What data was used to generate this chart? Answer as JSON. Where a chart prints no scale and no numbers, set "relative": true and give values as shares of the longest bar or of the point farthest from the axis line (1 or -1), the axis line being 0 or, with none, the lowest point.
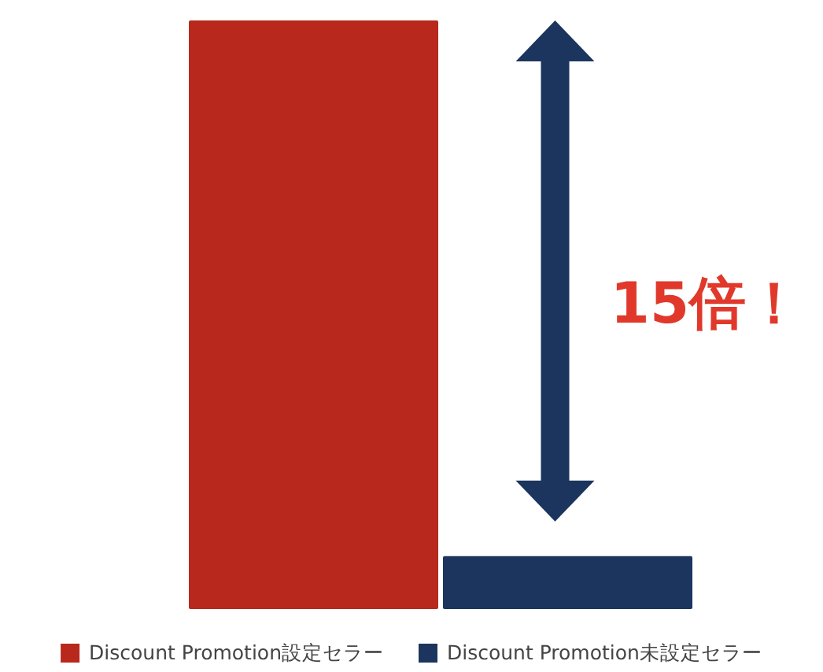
{
  "chart_data": {
    "type": "bar",
    "relative": true,
    "categories": [
      null
    ],
    "series": [
      {
        "name": "Discount Promotion設定セラー",
        "color": "#b8281d",
        "values": [
          1
        ]
      },
      {
        "name": "Discount Promotion未設定セラー",
        "color": "#1c355e",
        "values": [
          0.09
        ]
      }
    ],
    "legend": "bottom",
    "annotations": [
      "15倍！"
    ]
  }
}
